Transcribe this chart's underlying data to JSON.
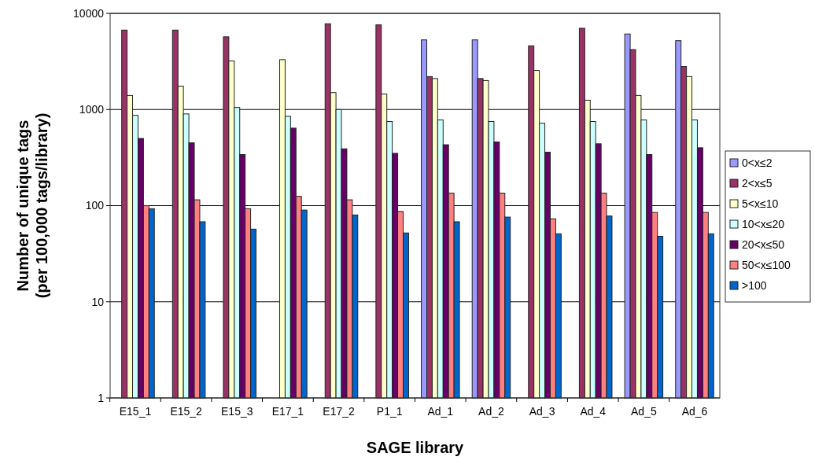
{
  "chart_data": {
    "type": "bar",
    "xlabel": "SAGE library",
    "ylabel": "Number of unique tags\n(per 100,000 tags/library)",
    "categories": [
      "E15_1",
      "E15_2",
      "E15_3",
      "E17_1",
      "E17_2",
      "P1_1",
      "Ad_1",
      "Ad_2",
      "Ad_3",
      "Ad_4",
      "Ad_5",
      "Ad_6"
    ],
    "series": [
      {
        "name": "0<x≤2",
        "color": "#9999ff",
        "values": [
          null,
          null,
          null,
          null,
          null,
          null,
          5300,
          5300,
          null,
          null,
          6100,
          5200
        ]
      },
      {
        "name": "2<x≤5",
        "color": "#993366",
        "values": [
          6700,
          6700,
          5700,
          null,
          7800,
          7600,
          2200,
          2100,
          4600,
          7000,
          4200,
          2800
        ]
      },
      {
        "name": "5<x≤10",
        "color": "#ffffcc",
        "values": [
          1400,
          1750,
          3200,
          3300,
          1500,
          1450,
          2100,
          2000,
          2550,
          1250,
          1400,
          2200
        ]
      },
      {
        "name": "10<x≤20",
        "color": "#ccffff",
        "values": [
          870,
          900,
          1050,
          850,
          1000,
          750,
          780,
          750,
          720,
          750,
          780,
          780
        ]
      },
      {
        "name": "20<x≤50",
        "color": "#660066",
        "values": [
          500,
          450,
          340,
          640,
          390,
          350,
          430,
          460,
          360,
          440,
          340,
          400
        ]
      },
      {
        "name": "50<x≤100",
        "color": "#ff8080",
        "values": [
          100,
          115,
          93,
          125,
          115,
          87,
          135,
          135,
          73,
          135,
          85,
          85
        ]
      },
      {
        "name": ">100",
        "color": "#0066cc",
        "values": [
          93,
          68,
          57,
          90,
          80,
          52,
          68,
          76,
          51,
          78,
          48,
          51
        ]
      }
    ],
    "log": true,
    "ylim": [
      1,
      10000
    ],
    "yticks": [
      1,
      10,
      100,
      1000,
      10000
    ],
    "grid": "y",
    "legend": "right"
  }
}
